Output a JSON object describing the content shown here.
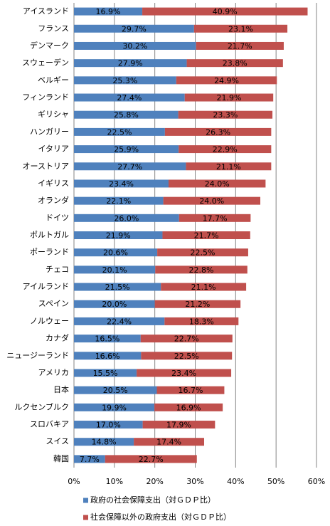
{
  "chart_data": {
    "type": "stacked_bar_horizontal",
    "categories": [
      "アイスランド",
      "フランス",
      "デンマーク",
      "スウェーデン",
      "ベルギー",
      "フィンランド",
      "ギリシャ",
      "ハンガリー",
      "イタリア",
      "オーストリア",
      "イギリス",
      "オランダ",
      "ドイツ",
      "ポルトガル",
      "ポーランド",
      "チェコ",
      "アイルランド",
      "スペイン",
      "ノルウェー",
      "カナダ",
      "ニュージーランド",
      "アメリカ",
      "日本",
      "ルクセンブルク",
      "スロバキア",
      "スイス",
      "韓国"
    ],
    "series": [
      {
        "name": "政府の社会保障支出（対ＧＤＰ比）",
        "color": "#4f81bd",
        "values": [
          16.9,
          29.7,
          30.2,
          27.9,
          25.3,
          27.4,
          25.8,
          22.5,
          25.9,
          27.7,
          23.4,
          22.1,
          26.0,
          21.9,
          20.6,
          20.1,
          21.5,
          20.0,
          22.4,
          16.5,
          16.6,
          15.5,
          20.5,
          19.9,
          17.0,
          14.8,
          7.7
        ],
        "value_labels": [
          "16.9%",
          "29.7%",
          "30.2%",
          "27.9%",
          "25.3%",
          "27.4%",
          "25.8%",
          "22.5%",
          "25.9%",
          "27.7%",
          "23.4%",
          "22.1%",
          "26.0%",
          "21.9%",
          "20.6%",
          "20.1%",
          "21.5%",
          "20.0%",
          "22.4%",
          "16.5%",
          "16.6%",
          "15.5%",
          "20.5%",
          "19.9%",
          "17.0%",
          "14.8%",
          "7.7%"
        ]
      },
      {
        "name": "社会保障以外の政府支出（対ＧＤＰ比）",
        "color": "#c0504d",
        "values": [
          40.9,
          23.1,
          21.7,
          23.8,
          24.9,
          21.9,
          23.3,
          26.3,
          22.9,
          21.1,
          24.0,
          24.0,
          17.7,
          21.7,
          22.5,
          22.8,
          21.1,
          21.2,
          18.3,
          22.7,
          22.5,
          23.4,
          16.7,
          16.9,
          17.9,
          17.4,
          22.7
        ],
        "value_labels": [
          "40.9%",
          "23.1%",
          "21.7%",
          "23.8%",
          "24.9%",
          "21.9%",
          "23.3%",
          "26.3%",
          "22.9%",
          "21.1%",
          "24.0%",
          "24.0%",
          "17.7%",
          "21.7%",
          "22.5%",
          "22.8%",
          "21.1%",
          "21.2%",
          "18.3%",
          "22.7%",
          "22.5%",
          "23.4%",
          "16.7%",
          "16.9%",
          "17.9%",
          "17.4%",
          "22.7%"
        ]
      }
    ],
    "xlim": [
      0,
      60
    ],
    "xticks": [
      {
        "value": 0,
        "label": "0%"
      },
      {
        "value": 10,
        "label": "10%"
      },
      {
        "value": 20,
        "label": "20%"
      },
      {
        "value": 30,
        "label": "30%"
      },
      {
        "value": 40,
        "label": "40%"
      },
      {
        "value": 50,
        "label": "50%"
      },
      {
        "value": 60,
        "label": "60%"
      }
    ],
    "grid": true
  }
}
